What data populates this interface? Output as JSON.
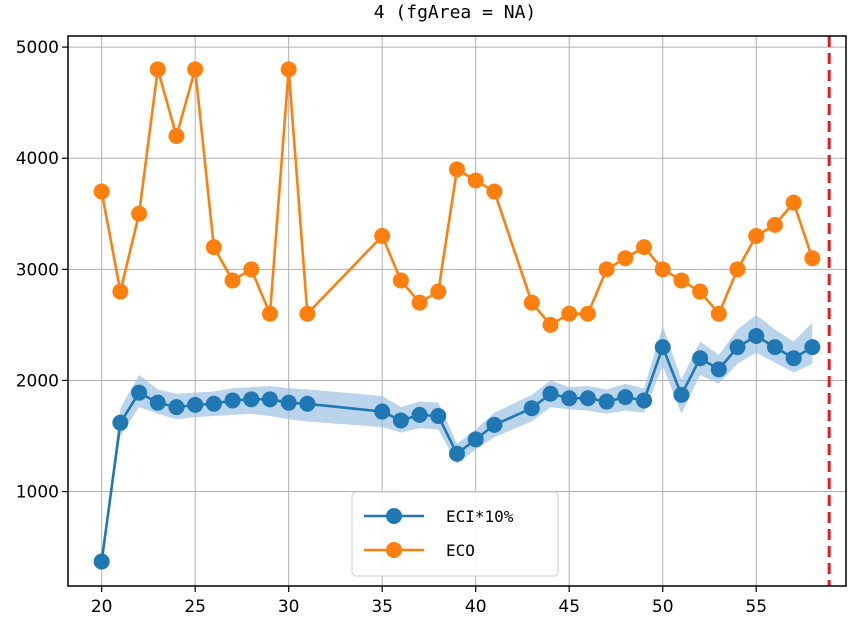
{
  "chart_data": {
    "type": "line",
    "title": "4 (fgArea = NA)",
    "xlabel": "",
    "ylabel": "",
    "xlim": [
      18.2,
      59.8
    ],
    "ylim": [
      150,
      5100
    ],
    "x_ticks": [
      20,
      25,
      30,
      35,
      40,
      45,
      50,
      55
    ],
    "y_ticks": [
      1000,
      2000,
      3000,
      4000,
      5000
    ],
    "grid": true,
    "legend_position": "lower-center",
    "reference_line": {
      "x": 58.9,
      "style": "dashed",
      "color": "#e41a1c"
    },
    "series": [
      {
        "name": "ECI*10%",
        "color": "#1f77b4",
        "band_color": "#9cc2e2",
        "x": [
          20,
          21,
          22,
          23,
          24,
          25,
          26,
          27,
          28,
          29,
          30,
          31,
          35,
          36,
          37,
          38,
          39,
          40,
          41,
          43,
          44,
          45,
          46,
          47,
          48,
          49,
          50,
          51,
          52,
          53,
          54,
          55,
          56,
          57,
          58
        ],
        "values": [
          370,
          1620,
          1890,
          1800,
          1760,
          1780,
          1790,
          1820,
          1830,
          1830,
          1800,
          1790,
          1720,
          1640,
          1690,
          1680,
          1340,
          1470,
          1600,
          1750,
          1880,
          1840,
          1840,
          1810,
          1850,
          1820,
          2300,
          1870,
          2200,
          2100,
          2300,
          2400,
          2300,
          2200,
          2300
        ],
        "band_lower": [
          370,
          1500,
          1760,
          1700,
          1650,
          1670,
          1680,
          1690,
          1700,
          1680,
          1650,
          1630,
          1580,
          1530,
          1570,
          1560,
          1250,
          1380,
          1490,
          1630,
          1760,
          1740,
          1730,
          1700,
          1730,
          1710,
          2130,
          1700,
          2050,
          1970,
          2150,
          2250,
          2160,
          2070,
          2150
        ],
        "band_upper": [
          370,
          1750,
          2050,
          1920,
          1880,
          1890,
          1900,
          1930,
          1940,
          1950,
          1930,
          1920,
          1860,
          1760,
          1810,
          1800,
          1430,
          1560,
          1710,
          1870,
          2000,
          1940,
          1950,
          1920,
          1970,
          1930,
          2490,
          2010,
          2350,
          2230,
          2460,
          2590,
          2460,
          2350,
          2520
        ]
      },
      {
        "name": "ECO",
        "color": "#ff7f0e",
        "x": [
          20,
          21,
          22,
          23,
          24,
          25,
          26,
          27,
          28,
          29,
          30,
          31,
          35,
          36,
          37,
          38,
          39,
          40,
          41,
          43,
          44,
          45,
          46,
          47,
          48,
          49,
          50,
          51,
          52,
          53,
          54,
          55,
          56,
          57,
          58
        ],
        "values": [
          3700,
          2800,
          3500,
          4800,
          4200,
          4800,
          3200,
          2900,
          3000,
          2600,
          4800,
          2600,
          3300,
          2900,
          2700,
          2800,
          3900,
          3800,
          3700,
          2700,
          2500,
          2600,
          2600,
          3000,
          3100,
          3200,
          3000,
          2900,
          2800,
          2600,
          3000,
          3300,
          3400,
          3600,
          3100
        ]
      }
    ]
  }
}
